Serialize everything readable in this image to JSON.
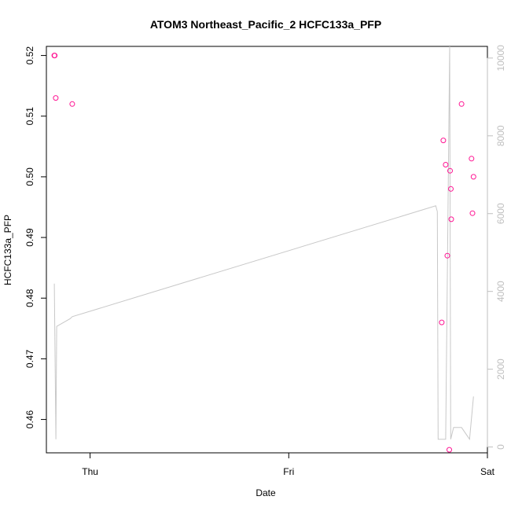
{
  "chart_data": {
    "type": "scatter",
    "title": "ATOM3 Northeast_Pacific_2 HCFC133a_PFP",
    "xlabel": "Date",
    "ylabel": "HCFC133a_PFP",
    "x_ticks": [
      "Thu",
      "Fri",
      "Sat"
    ],
    "y_ticks": [
      "0.46",
      "0.47",
      "0.48",
      "0.49",
      "0.50",
      "0.51",
      "0.52"
    ],
    "y2_ticks": [
      "0",
      "2000",
      "4000",
      "6000",
      "8000",
      "10000"
    ],
    "ylim": [
      0.4545,
      0.5215
    ],
    "y2lim": [
      -150,
      10300
    ],
    "xlim_days": [
      -0.22,
      2.0
    ],
    "colors": {
      "points": "#ff1493",
      "altitude_line": "#c8c8c8",
      "axis": "#000000",
      "right_axis": "#bfbfbf"
    },
    "series": [
      {
        "type": "scatter",
        "axis": "left",
        "x": [
          "Wed 22:10",
          "Wed 22:12",
          "Wed 22:18",
          "Wed 23:40",
          "Fri 23:30",
          "Fri 23:40",
          "Fri 23:55",
          "Sat 00:05",
          "Sat 00:10",
          "Sat 00:20",
          "Sat 00:28",
          "Sat 00:30",
          "Sat 01:10",
          "Sat 01:50",
          "Sat 01:55",
          "Sat 02:00"
        ],
        "x_days": [
          -0.18,
          -0.178,
          -0.173,
          -0.09,
          1.77,
          1.778,
          1.79,
          1.798,
          1.808,
          1.812,
          1.816,
          1.818,
          1.87,
          1.92,
          1.925,
          1.93
        ],
        "y": [
          0.52,
          0.52,
          0.513,
          0.512,
          0.476,
          0.506,
          0.502,
          0.487,
          0.455,
          0.501,
          0.498,
          0.493,
          0.512,
          0.503,
          0.494,
          0.5
        ]
      },
      {
        "type": "line",
        "axis": "right",
        "x_days": [
          -0.18,
          -0.172,
          -0.168,
          -0.1,
          -0.09,
          1.74,
          1.748,
          1.752,
          1.79,
          1.81,
          1.815,
          1.83,
          1.87,
          1.91,
          1.93
        ],
        "y": [
          4200,
          200,
          3100,
          3300,
          3350,
          6200,
          6050,
          200,
          200,
          10300,
          200,
          500,
          500,
          200,
          1300
        ]
      }
    ]
  }
}
